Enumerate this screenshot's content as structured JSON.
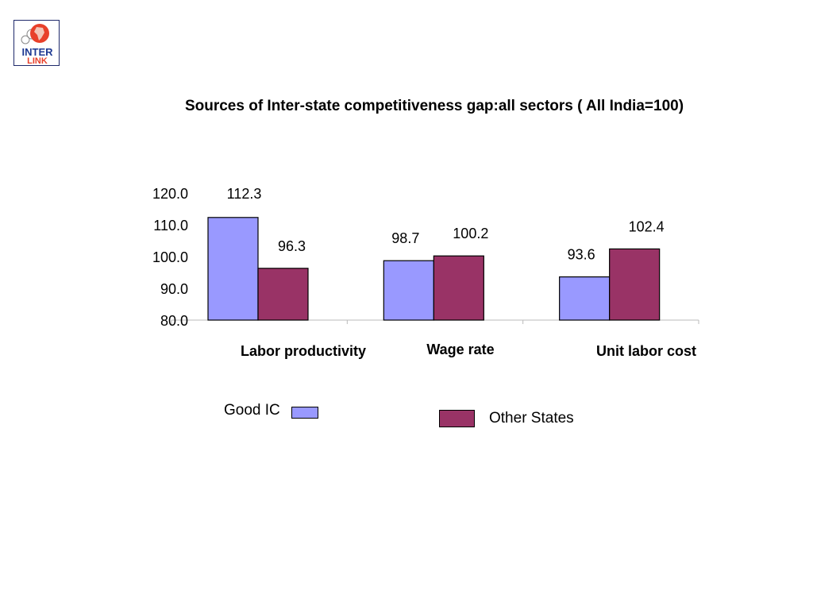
{
  "logo": {
    "text_top": "INTER",
    "text_bottom": "LINK"
  },
  "chart_data": {
    "type": "bar",
    "title": "Sources of Inter-state competitiveness gap:all sectors ( All India=100)",
    "categories": [
      "Labor productivity",
      "Wage rate",
      "Unit labor cost"
    ],
    "series": [
      {
        "name": "Good IC",
        "values": [
          112.3,
          98.7,
          93.6
        ],
        "labels": [
          "112.3",
          "98.7",
          "93.6"
        ],
        "color": "#9999ff"
      },
      {
        "name": "Other States",
        "values": [
          96.3,
          100.2,
          102.4
        ],
        "labels": [
          "96.3",
          "100.2",
          "102.4"
        ],
        "color": "#993366"
      }
    ],
    "ylim": [
      80,
      120
    ],
    "yticks": [
      "80.0",
      "90.0",
      "100.0",
      "110.0",
      "120.0"
    ],
    "xlabel": "",
    "ylabel": "",
    "grid": false,
    "legend": "bottom"
  }
}
